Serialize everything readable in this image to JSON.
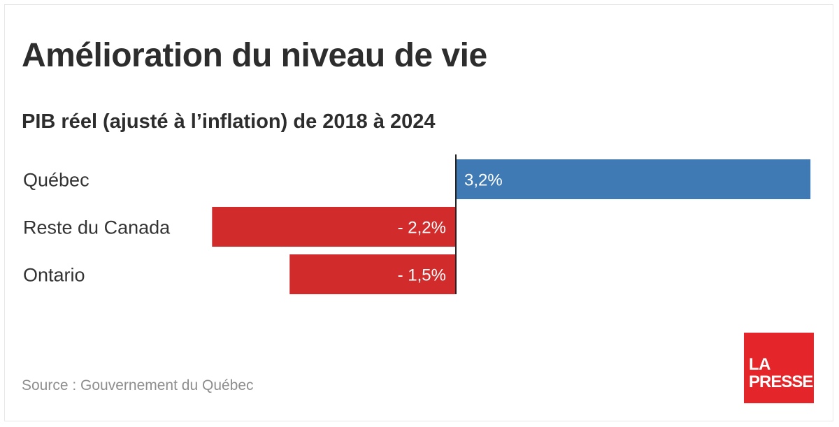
{
  "header": {
    "title": "Amélioration du niveau de vie",
    "subtitle": "PIB réel (ajusté à l’inflation) de 2018 à 2024"
  },
  "chart_data": {
    "type": "bar",
    "orientation": "horizontal",
    "title": "Amélioration du niveau de vie",
    "subtitle": "PIB réel (ajusté à l’inflation) de 2018 à 2024",
    "categories": [
      "Québec",
      "Reste du Canada",
      "Ontario"
    ],
    "values": [
      3.2,
      -2.2,
      -1.5
    ],
    "value_labels": [
      "3,2%",
      "- 2,2%",
      "- 1,5%"
    ],
    "unit": "%",
    "colors": {
      "positive": "#3f7ab4",
      "negative": "#d12b2b",
      "axis": "#222222"
    },
    "grid": false,
    "legend": "none"
  },
  "footer": {
    "source": "Source : Gouvernement du Québec",
    "logo_line1": "LA",
    "logo_line2": "PRESSE"
  }
}
